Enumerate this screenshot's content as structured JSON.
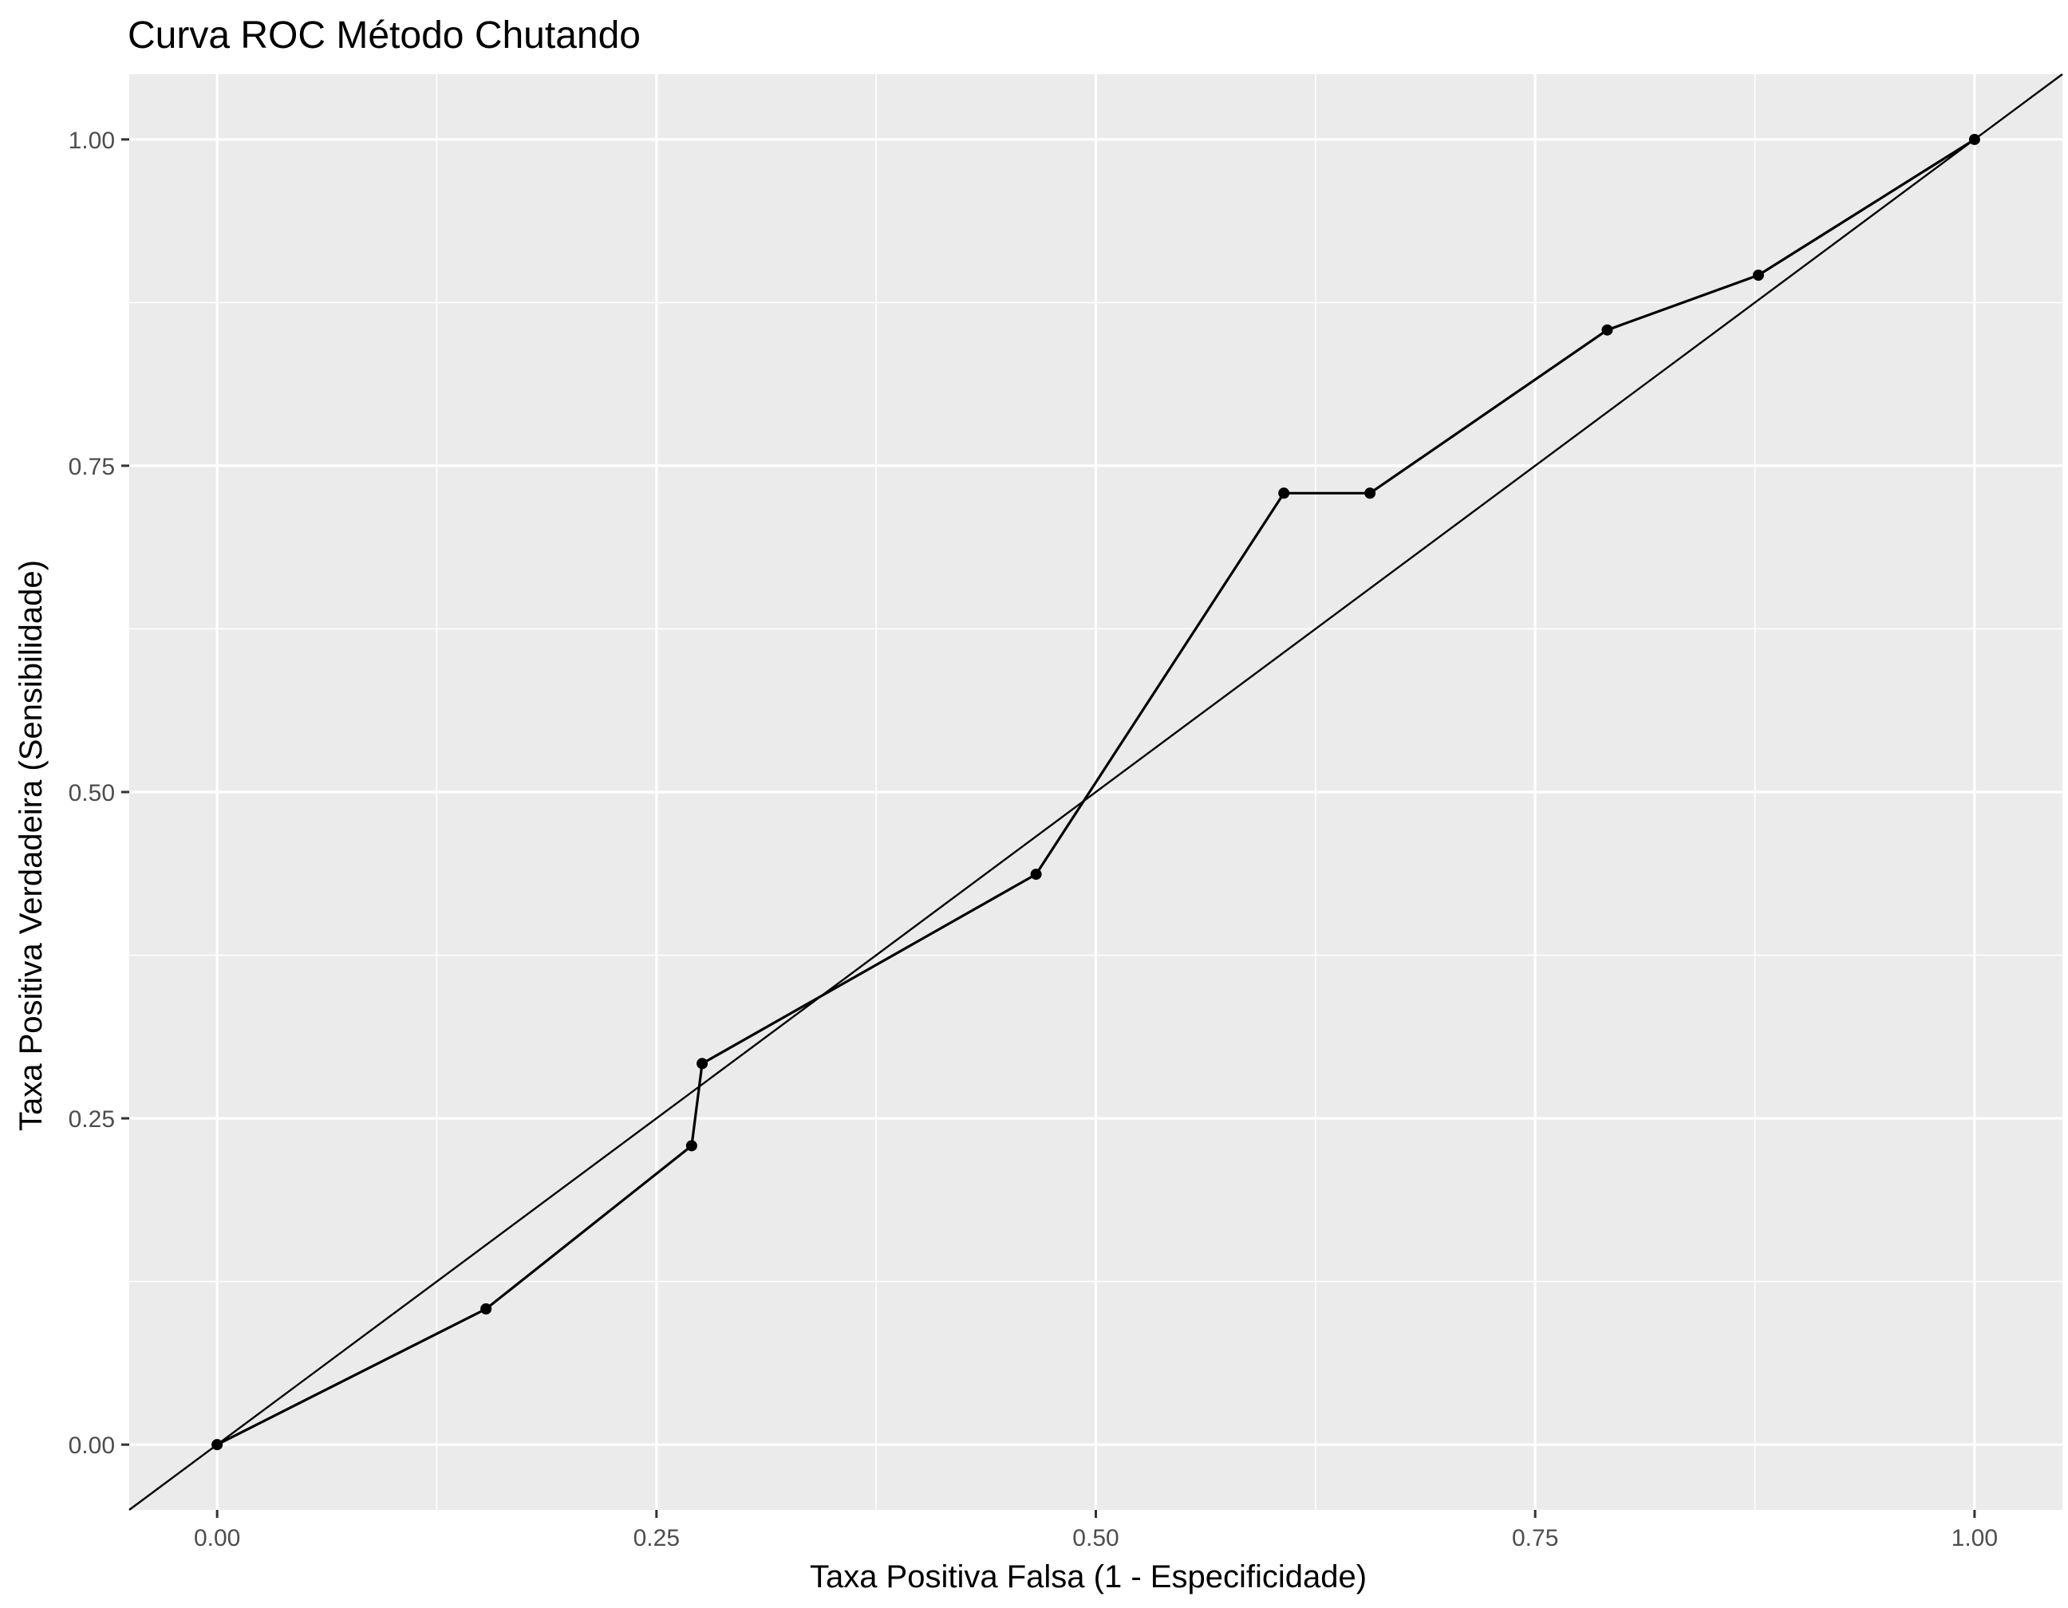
{
  "chart_data": {
    "type": "line",
    "title": "Curva ROC Método Chutando",
    "xlabel": "Taxa Positiva Falsa (1 - Especificidade)",
    "ylabel": "Taxa Positiva Verdadeira (Sensibilidade)",
    "xlim": [
      -0.05,
      1.05
    ],
    "ylim": [
      -0.05,
      1.05
    ],
    "x_ticks": [
      0.0,
      0.25,
      0.5,
      0.75,
      1.0
    ],
    "x_tick_labels": [
      "0.00",
      "0.25",
      "0.50",
      "0.75",
      "1.00"
    ],
    "y_ticks": [
      0.0,
      0.25,
      0.5,
      0.75,
      1.0
    ],
    "y_tick_labels": [
      "0.00",
      "0.25",
      "0.50",
      "0.75",
      "1.00"
    ],
    "grid": true,
    "legend": "none",
    "series": [
      {
        "x": [
          0.0,
          0.153,
          0.27,
          0.276,
          0.466,
          0.607,
          0.656,
          0.791,
          0.877,
          1.0
        ],
        "y": [
          0.0,
          0.104,
          0.229,
          0.292,
          0.437,
          0.729,
          0.729,
          0.854,
          0.896,
          1.0
        ],
        "markers": true
      }
    ],
    "reference_line": {
      "type": "diagonal",
      "intercept": 0,
      "slope": 1
    },
    "colors": {
      "panel_background": "#ebebeb",
      "grid": "#ffffff",
      "line": "#000000",
      "tick_label": "#4d4d4d",
      "text": "#000000"
    }
  }
}
